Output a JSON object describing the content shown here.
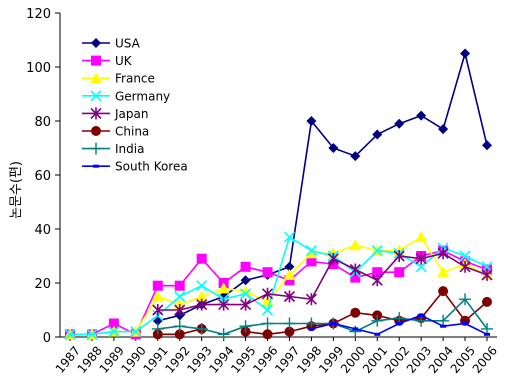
{
  "chart_data": {
    "type": "line",
    "title": "",
    "xlabel": "",
    "ylabel": "논문수(편)",
    "x": [
      "1987",
      "1988",
      "1989",
      "1990",
      "1991",
      "1992",
      "1993",
      "1994",
      "1995",
      "1996",
      "1997",
      "1998",
      "1999",
      "2000",
      "2001",
      "2002",
      "2003",
      "2004",
      "2005",
      "2006"
    ],
    "ylim": [
      0,
      120
    ],
    "yticks": [
      0,
      20,
      40,
      60,
      80,
      100,
      120
    ],
    "grid": false,
    "legend_position": "top-left",
    "series": [
      {
        "name": "USA",
        "color": "#000080",
        "marker": "diamond",
        "values": [
          null,
          null,
          null,
          null,
          6,
          8,
          12,
          15,
          21,
          23,
          26,
          80,
          70,
          67,
          75,
          79,
          82,
          77,
          105,
          71
        ]
      },
      {
        "name": "UK",
        "color": "#ff00ff",
        "marker": "square",
        "values": [
          1,
          1,
          5,
          1,
          19,
          19,
          29,
          20,
          26,
          24,
          21,
          28,
          27,
          22,
          24,
          24,
          30,
          32,
          28,
          25
        ]
      },
      {
        "name": "France",
        "color": "#ffff00",
        "marker": "triangle",
        "values": [
          1,
          1,
          2,
          2,
          15,
          12,
          15,
          18,
          17,
          13,
          23,
          31,
          31,
          34,
          32,
          32,
          37,
          24,
          27,
          23
        ]
      },
      {
        "name": "Germany",
        "color": "#00ffff",
        "marker": "x",
        "values": [
          1,
          1,
          2,
          2,
          8,
          15,
          19,
          14,
          16,
          10,
          37,
          32,
          30,
          24,
          32,
          31,
          26,
          33,
          30,
          26
        ]
      },
      {
        "name": "Japan",
        "color": "#800080",
        "marker": "star",
        "values": [
          null,
          null,
          null,
          null,
          10,
          10,
          12,
          12,
          12,
          16,
          15,
          14,
          29,
          25,
          21,
          30,
          29,
          31,
          26,
          23
        ]
      },
      {
        "name": "China",
        "color": "#800000",
        "marker": "circle",
        "values": [
          null,
          null,
          null,
          null,
          1,
          1,
          3,
          null,
          2,
          1,
          2,
          4,
          5,
          9,
          8,
          6,
          7,
          17,
          6,
          13
        ]
      },
      {
        "name": "India",
        "color": "#008080",
        "marker": "plus",
        "values": [
          null,
          null,
          null,
          null,
          3,
          4,
          3,
          1,
          4,
          5,
          5,
          5,
          5,
          2,
          6,
          7,
          6,
          6,
          14,
          3
        ]
      },
      {
        "name": "South Korea",
        "color": "#0000ff",
        "marker": "dash",
        "values": [
          null,
          null,
          null,
          null,
          null,
          null,
          null,
          null,
          null,
          null,
          null,
          3,
          5,
          3,
          1,
          5,
          8,
          4,
          5,
          1
        ]
      }
    ]
  }
}
